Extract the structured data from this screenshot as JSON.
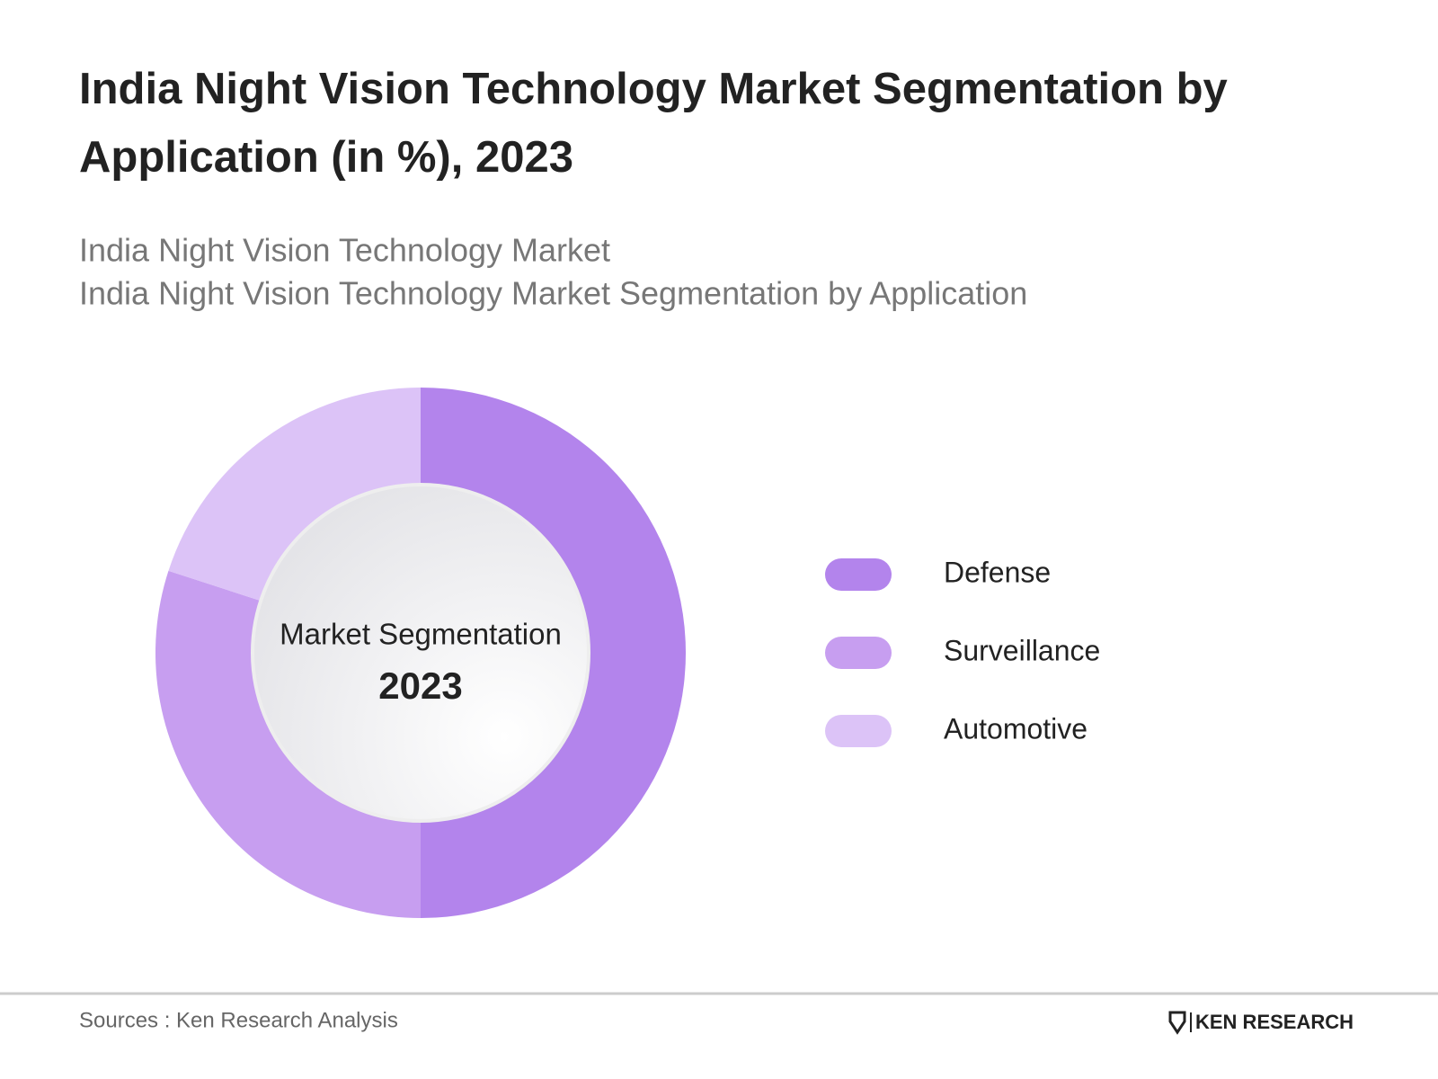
{
  "chart_data": {
    "type": "donut",
    "title": "India Night Vision Technology Market Segmentation by Application (in %), 2023",
    "subtitle": [
      "India Night Vision Technology Market",
      "India Night Vision Technology Market Segmentation by Application"
    ],
    "center_label": "Market Segmentation",
    "center_year": "2023",
    "categories": [
      "Defense",
      "Surveillance",
      "Automotive"
    ],
    "values": [
      50,
      30,
      20
    ],
    "colors": [
      "#b384ec",
      "#c79ef0",
      "#dcc3f7"
    ]
  },
  "footer": {
    "source": "Sources : Ken Research Analysis",
    "logo": "KEN RESEARCH"
  }
}
